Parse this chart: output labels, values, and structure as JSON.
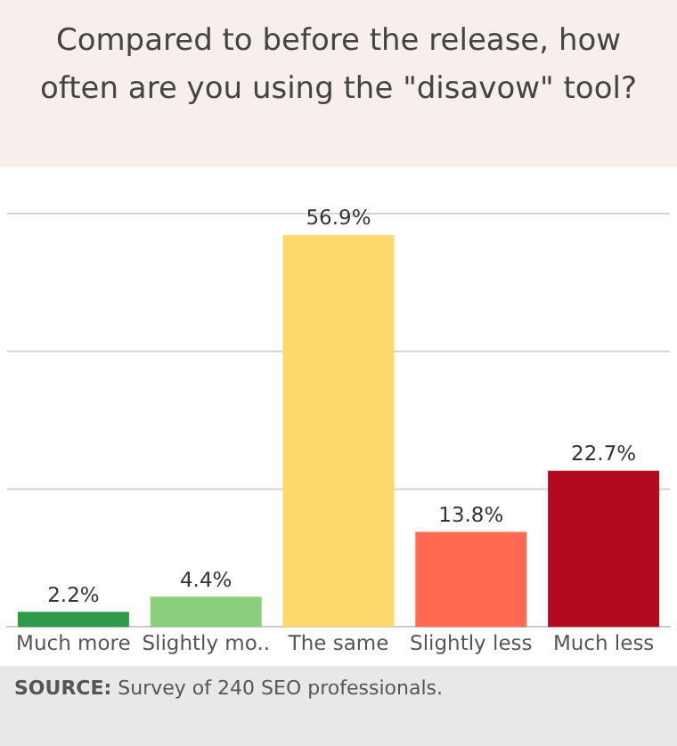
{
  "chart_data": {
    "type": "bar",
    "title": "Compared to before the release, how often are you using the \"disavow\" tool?",
    "categories": [
      "Much more",
      "Slightly mo..",
      "The same",
      "Slightly less",
      "Much less"
    ],
    "values": [
      2.2,
      4.4,
      56.9,
      13.8,
      22.7
    ],
    "colors": [
      "#2f9a48",
      "#8bcf7c",
      "#fdd96b",
      "#ff6a50",
      "#b5091f"
    ],
    "value_labels": [
      "2.2%",
      "4.4%",
      "56.9%",
      "13.8%",
      "22.7%"
    ],
    "ylim": [
      0,
      60
    ],
    "ref_lines": [
      {
        "axis": "y",
        "value": 20,
        "color": "#d4d4d4"
      },
      {
        "axis": "y",
        "value": 40,
        "color": "#d4d4d4"
      },
      {
        "axis": "y",
        "value": 60,
        "color": "#d4d4d4"
      }
    ],
    "tick_labels": "x",
    "annotations": [
      "SOURCE: Survey of 240 SEO professionals."
    ]
  }
}
